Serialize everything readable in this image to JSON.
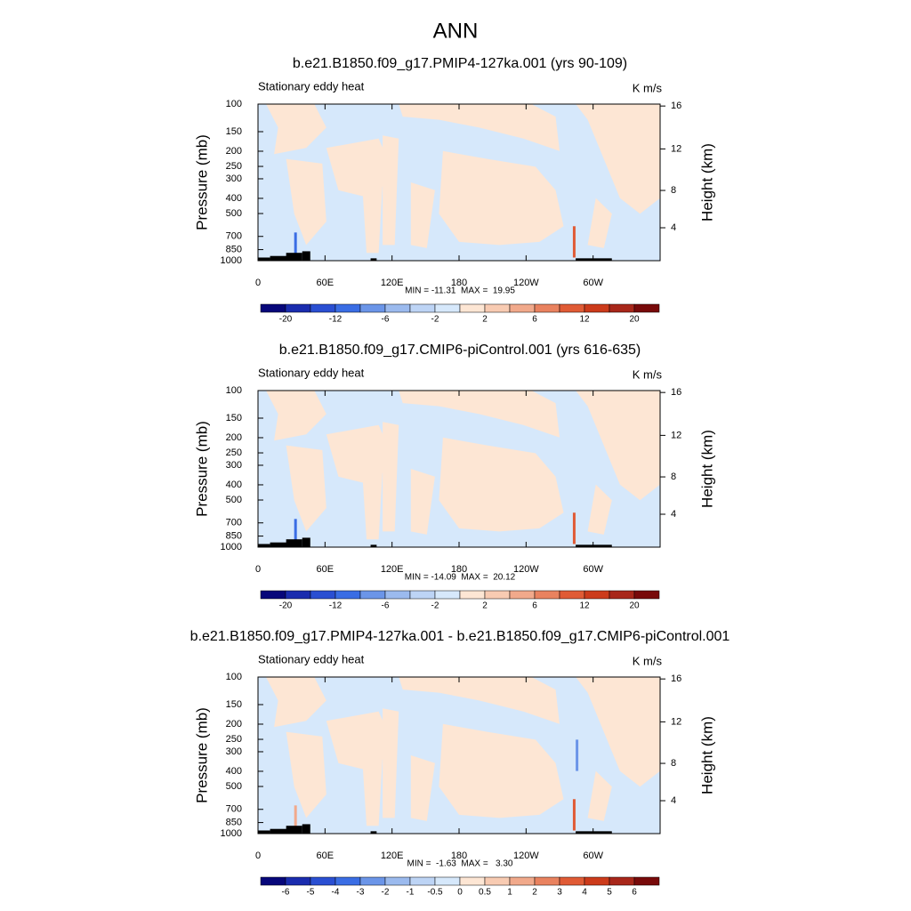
{
  "title": "ANN",
  "chart_data": [
    {
      "type": "contour",
      "title": "b.e21.B1850.f09_g17.PMIP4-127ka.001 (yrs 90-109)",
      "left_label": "Stationary eddy heat",
      "right_label": "K m/s",
      "y_label": "Pressure (mb)",
      "y2_label": "Height (km)",
      "xlim": [
        0,
        360
      ],
      "xticks": [
        0,
        {
          "value": 60,
          "label": "60E"
        },
        {
          "value": 120,
          "label": "120E"
        },
        180,
        {
          "value": 240,
          "label": "120W"
        },
        {
          "value": 300,
          "label": "60W"
        }
      ],
      "ylim": [
        1000,
        100
      ],
      "y_log": true,
      "yticks": [
        100,
        150,
        200,
        250,
        300,
        400,
        500,
        700,
        850,
        1000
      ],
      "y2ticks": [
        4,
        8,
        12,
        16
      ],
      "stats": "MIN = -11.31  MAX =  19.95",
      "colorbar": {
        "levels": [
          -20,
          -12,
          -6,
          -2,
          2,
          6,
          12,
          20
        ],
        "colors": [
          "#07077a",
          "#1a2cae",
          "#2a4fd2",
          "#3a6de4",
          "#6b95e8",
          "#9bbaee",
          "#bdd4f5",
          "#d6e8fb",
          "#fde6d4",
          "#f8cbb2",
          "#f1a98b",
          "#e9825f",
          "#e05b35",
          "#cc3b1b",
          "#a8271a",
          "#780a0a"
        ]
      }
    },
    {
      "type": "contour",
      "title": "b.e21.B1850.f09_g17.CMIP6-piControl.001 (yrs 616-635)",
      "left_label": "Stationary eddy heat",
      "right_label": "K m/s",
      "y_label": "Pressure (mb)",
      "y2_label": "Height (km)",
      "xlim": [
        0,
        360
      ],
      "xticks": [
        0,
        {
          "value": 60,
          "label": "60E"
        },
        {
          "value": 120,
          "label": "120E"
        },
        180,
        {
          "value": 240,
          "label": "120W"
        },
        {
          "value": 300,
          "label": "60W"
        }
      ],
      "ylim": [
        1000,
        100
      ],
      "y_log": true,
      "yticks": [
        100,
        150,
        200,
        250,
        300,
        400,
        500,
        700,
        850,
        1000
      ],
      "y2ticks": [
        4,
        8,
        12,
        16
      ],
      "stats": "MIN = -14.09  MAX =  20.12",
      "colorbar": {
        "levels": [
          -20,
          -12,
          -6,
          -2,
          2,
          6,
          12,
          20
        ],
        "colors": [
          "#07077a",
          "#1a2cae",
          "#2a4fd2",
          "#3a6de4",
          "#6b95e8",
          "#9bbaee",
          "#bdd4f5",
          "#d6e8fb",
          "#fde6d4",
          "#f8cbb2",
          "#f1a98b",
          "#e9825f",
          "#e05b35",
          "#cc3b1b",
          "#a8271a",
          "#780a0a"
        ]
      }
    },
    {
      "type": "contour",
      "title": "b.e21.B1850.f09_g17.PMIP4-127ka.001 - b.e21.B1850.f09_g17.CMIP6-piControl.001",
      "left_label": "Stationary eddy heat",
      "right_label": "K m/s",
      "y_label": "Pressure (mb)",
      "y2_label": "Height (km)",
      "xlim": [
        0,
        360
      ],
      "xticks": [
        0,
        {
          "value": 60,
          "label": "60E"
        },
        {
          "value": 120,
          "label": "120E"
        },
        180,
        {
          "value": 240,
          "label": "120W"
        },
        {
          "value": 300,
          "label": "60W"
        }
      ],
      "ylim": [
        1000,
        100
      ],
      "y_log": true,
      "yticks": [
        100,
        150,
        200,
        250,
        300,
        400,
        500,
        700,
        850,
        1000
      ],
      "y2ticks": [
        4,
        8,
        12,
        16
      ],
      "stats": "MIN =  -1.63  MAX =   3.30",
      "colorbar": {
        "levels": [
          -6,
          -5,
          -4,
          -3,
          -2,
          -1,
          -0.5,
          0,
          0.5,
          1,
          2,
          3,
          4,
          5,
          6
        ],
        "colors": [
          "#07077a",
          "#1a2cae",
          "#2a4fd2",
          "#3a6de4",
          "#6b95e8",
          "#9bbaee",
          "#bdd4f5",
          "#d6e8fb",
          "#fde6d4",
          "#f8cbb2",
          "#f1a98b",
          "#e9825f",
          "#e05b35",
          "#cc3b1b",
          "#a8271a",
          "#780a0a"
        ]
      }
    }
  ]
}
